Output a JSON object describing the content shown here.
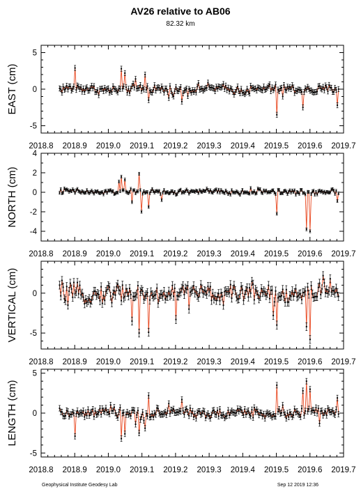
{
  "header": {
    "title": "AV26 relative to AB06",
    "subtitle": "82.32 km"
  },
  "footer": {
    "left": "Geophysical Institute Geodesy Lab",
    "right": "Sep 12 2019 12:36"
  },
  "colors": {
    "line": "#e8461e",
    "points": "#000000"
  },
  "chart_data": [
    {
      "type": "scatter",
      "ylabel": "EAST (cm)",
      "xlim": [
        2018.8,
        2019.7
      ],
      "ylim": [
        -6,
        6
      ],
      "yticks": [
        -5,
        0,
        5
      ],
      "xticks": [
        "2018.8",
        "2018.9",
        "2019.0",
        "2019.1",
        "2019.2",
        "2019.3",
        "2019.4",
        "2019.5",
        "2019.6",
        "2019.7"
      ],
      "x_start": 2018.855,
      "x_end": 2019.685,
      "noise": 0.45,
      "base": 0.0,
      "errorbar": 0.35,
      "features": [
        [
          2018.9,
          2.9
        ],
        [
          2019.04,
          2.8
        ],
        [
          2019.05,
          2.2
        ],
        [
          2019.08,
          1.4
        ],
        [
          2019.11,
          2.0
        ],
        [
          2019.12,
          -1.5
        ],
        [
          2019.18,
          -1.2
        ],
        [
          2019.22,
          -1.7
        ],
        [
          2019.5,
          -3.5
        ],
        [
          2019.52,
          -1.0
        ],
        [
          2019.58,
          -2.5
        ],
        [
          2019.68,
          -2.2
        ]
      ],
      "series": [
        {
          "name": "",
          "values": []
        }
      ]
    },
    {
      "type": "scatter",
      "ylabel": "NORTH (cm)",
      "xlim": [
        2018.8,
        2019.7
      ],
      "ylim": [
        -5,
        4
      ],
      "yticks": [
        -4,
        -2,
        0,
        2,
        4
      ],
      "xticks": [
        "2018.8",
        "2018.9",
        "2019.0",
        "2019.1",
        "2019.2",
        "2019.3",
        "2019.4",
        "2019.5",
        "2019.6",
        "2019.7"
      ],
      "x_start": 2018.855,
      "x_end": 2019.685,
      "noise": 0.2,
      "base": 0.05,
      "errorbar": 0.15,
      "features": [
        [
          2019.03,
          1.1
        ],
        [
          2019.04,
          1.6
        ],
        [
          2019.05,
          1.3
        ],
        [
          2019.07,
          -1.0
        ],
        [
          2019.09,
          1.9
        ],
        [
          2019.1,
          -2.0
        ],
        [
          2019.12,
          -1.5
        ],
        [
          2019.16,
          -0.8
        ],
        [
          2019.5,
          -2.2
        ],
        [
          2019.59,
          -3.8
        ],
        [
          2019.6,
          -4.0
        ],
        [
          2019.68,
          -0.9
        ]
      ],
      "series": [
        {
          "name": "",
          "values": []
        }
      ]
    },
    {
      "type": "scatter",
      "ylabel": "VERTICAL (cm)",
      "xlim": [
        2018.8,
        2019.7
      ],
      "ylim": [
        -7,
        4
      ],
      "yticks": [
        -5,
        0
      ],
      "xticks": [
        "2018.8",
        "2018.9",
        "2019.0",
        "2019.1",
        "2019.2",
        "2019.3",
        "2019.4",
        "2019.5",
        "2019.6",
        "2019.7"
      ],
      "x_start": 2018.855,
      "x_end": 2019.685,
      "noise": 0.8,
      "base": 0.0,
      "errorbar": 0.5,
      "features": [
        [
          2018.88,
          -1.5
        ],
        [
          2019.01,
          -1.2
        ],
        [
          2019.07,
          -3.5
        ],
        [
          2019.09,
          -5.0
        ],
        [
          2019.12,
          -4.9
        ],
        [
          2019.2,
          -3.3
        ],
        [
          2019.24,
          -2.0
        ],
        [
          2019.49,
          -2.8
        ],
        [
          2019.5,
          -4.0
        ],
        [
          2019.59,
          -4.2
        ],
        [
          2019.6,
          -5.8
        ],
        [
          2019.64,
          2.2
        ],
        [
          2019.66,
          1.8
        ]
      ],
      "series": [
        {
          "name": "",
          "values": []
        }
      ]
    },
    {
      "type": "scatter",
      "ylabel": "LENGTH (cm)",
      "xlim": [
        2018.8,
        2019.7
      ],
      "ylim": [
        -5.5,
        5.5
      ],
      "yticks": [
        -5,
        0,
        5
      ],
      "xticks": [
        "2018.8",
        "2018.9",
        "2019.0",
        "2019.1",
        "2019.2",
        "2019.3",
        "2019.4",
        "2019.5",
        "2019.6",
        "2019.7"
      ],
      "x_start": 2018.855,
      "x_end": 2019.685,
      "noise": 0.45,
      "base": 0.0,
      "errorbar": 0.35,
      "features": [
        [
          2018.9,
          -2.9
        ],
        [
          2019.04,
          -3.2
        ],
        [
          2019.05,
          -2.6
        ],
        [
          2019.08,
          -1.4
        ],
        [
          2019.09,
          -2.5
        ],
        [
          2019.11,
          -1.9
        ],
        [
          2019.12,
          2.2
        ],
        [
          2019.18,
          1.2
        ],
        [
          2019.22,
          1.7
        ],
        [
          2019.5,
          3.5
        ],
        [
          2019.52,
          1.0
        ],
        [
          2019.58,
          2.8
        ],
        [
          2019.59,
          4.0
        ],
        [
          2019.6,
          3.0
        ],
        [
          2019.63,
          -1.3
        ],
        [
          2019.68,
          1.9
        ]
      ],
      "series": [
        {
          "name": "",
          "values": []
        }
      ]
    }
  ]
}
